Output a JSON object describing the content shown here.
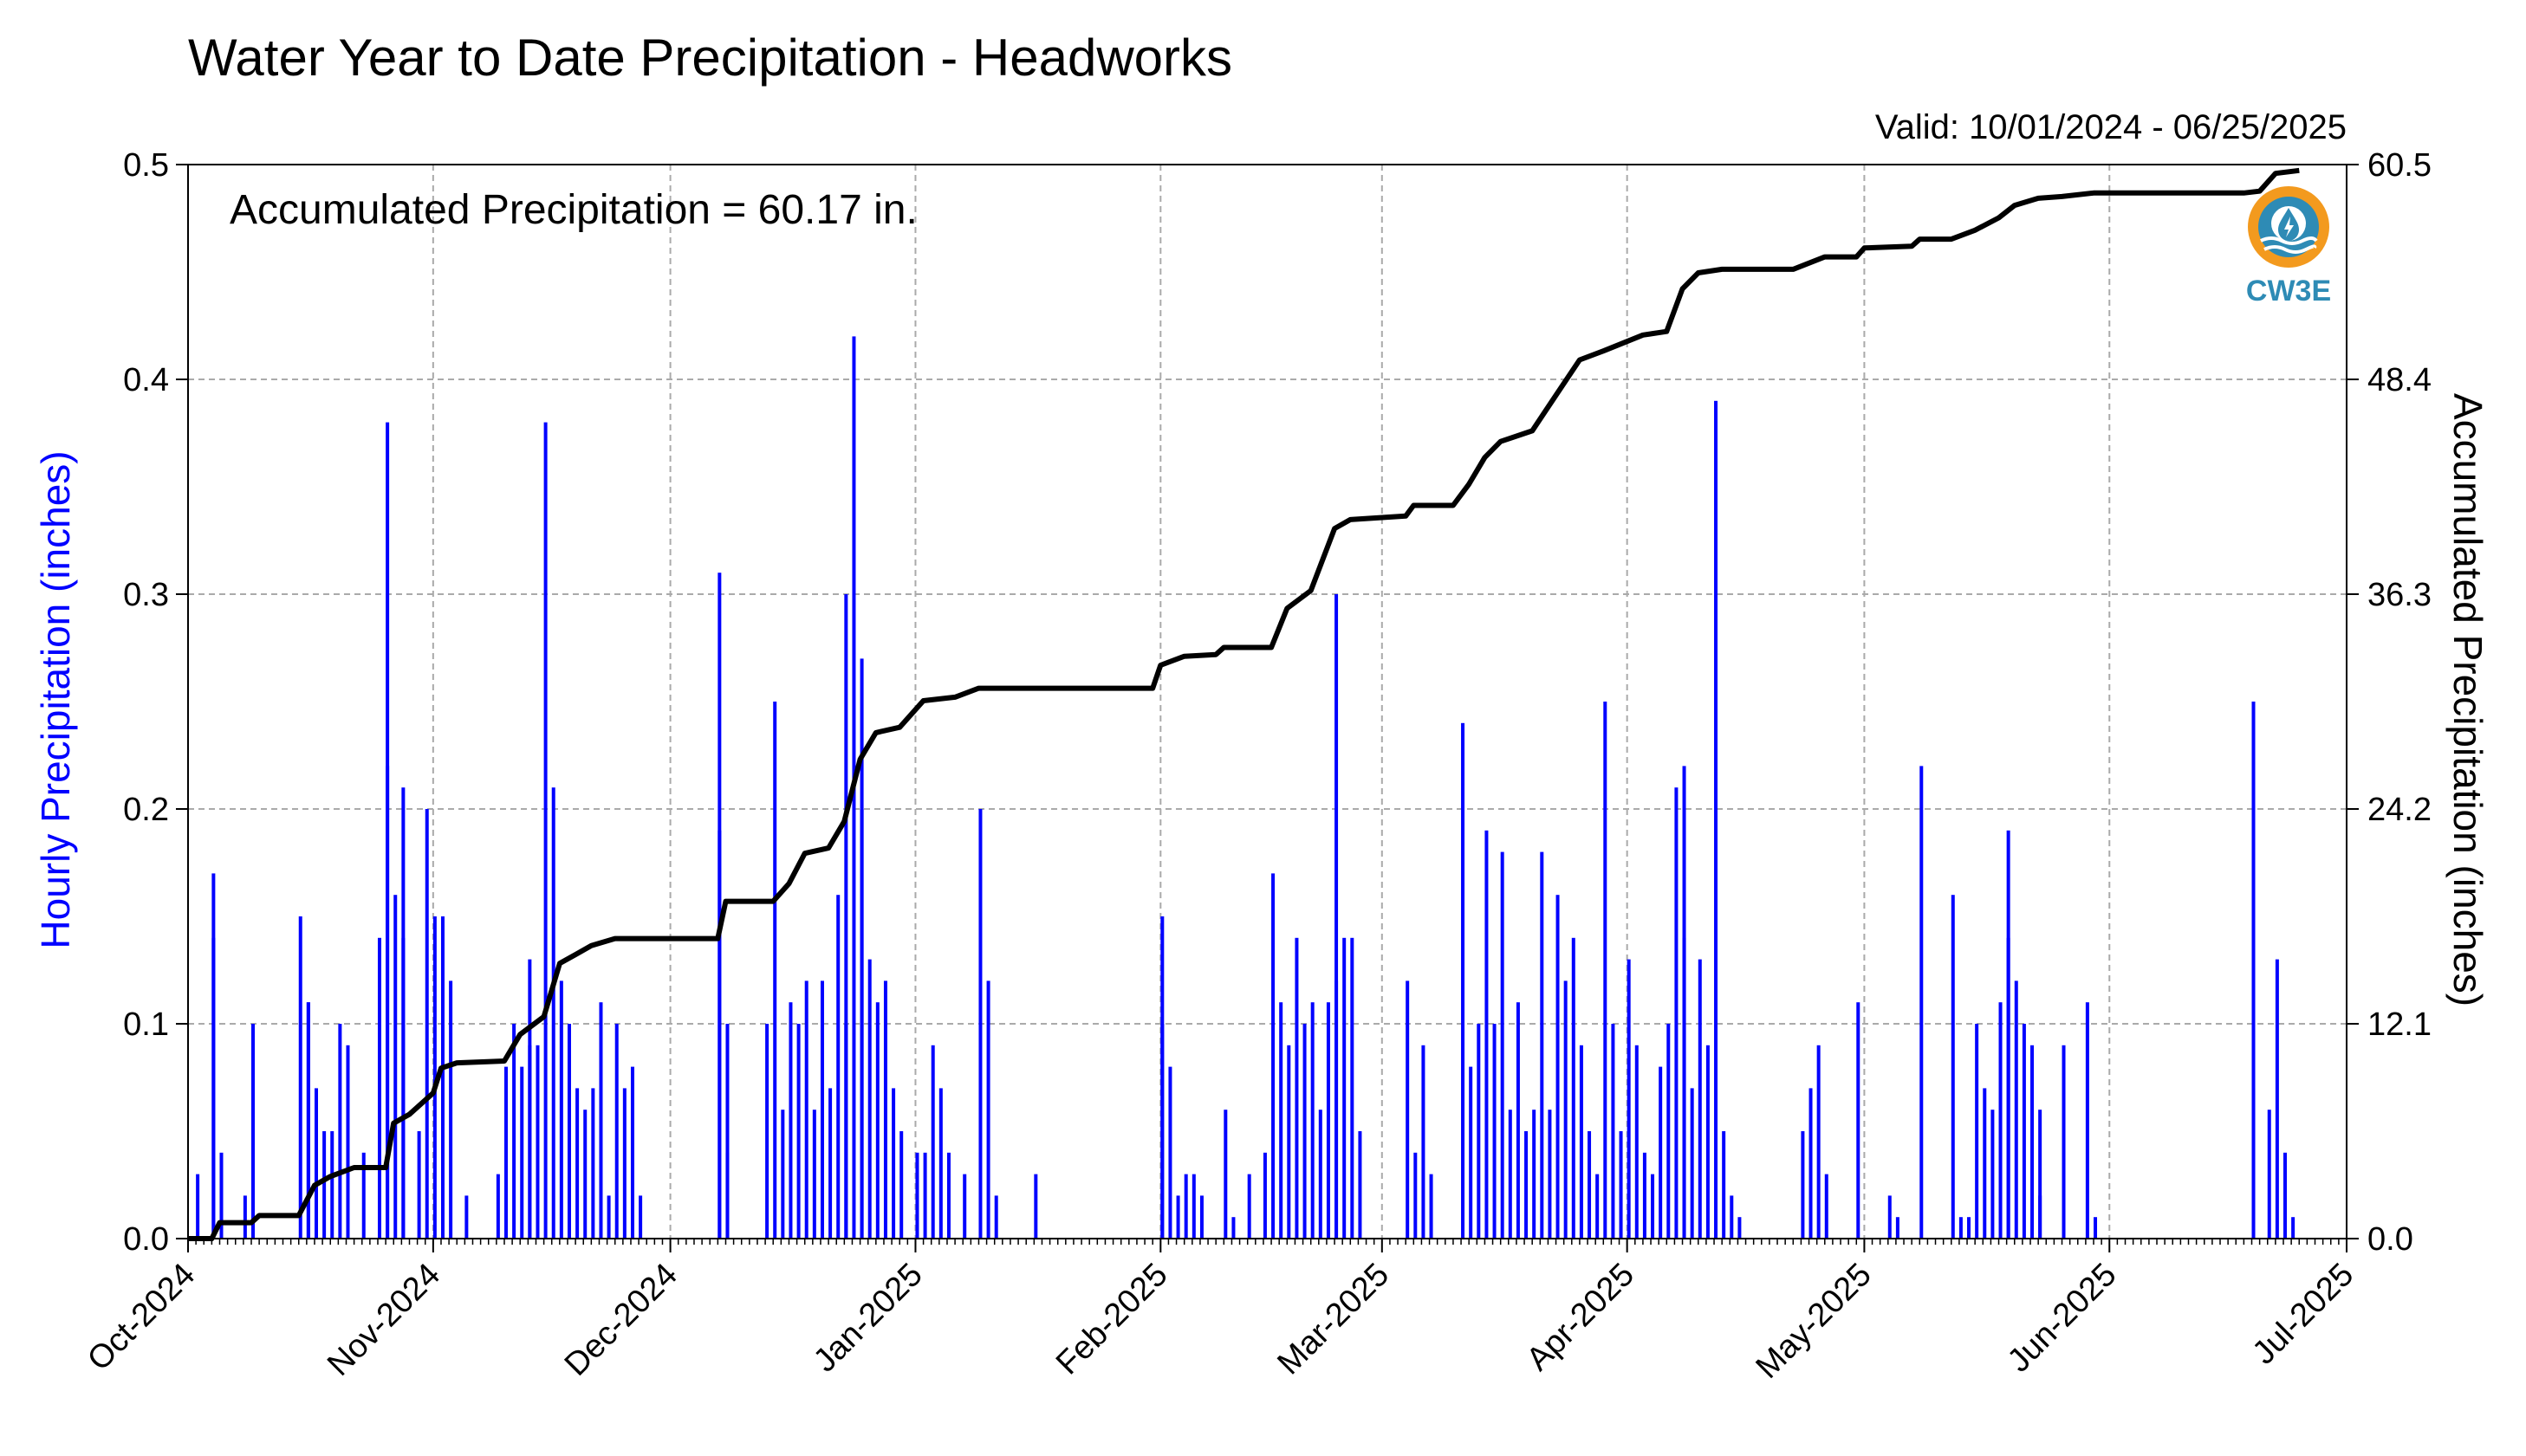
{
  "chart_data": {
    "type": "bar",
    "title": "Water Year to Date Precipitation - Headworks",
    "subtitle": "Valid: 10/01/2024 - 06/25/2025",
    "annotation": "Accumulated Precipitation = 60.17 in.",
    "logo_text": "CW3E",
    "ylabel": "Hourly Precipitation (inches)",
    "y2label": "Accumulated Precipitation (inches)",
    "ylim": [
      0,
      0.5
    ],
    "y2lim": [
      0,
      60.5
    ],
    "y_ticks": [
      "0.0",
      "0.1",
      "0.2",
      "0.3",
      "0.4",
      "0.5"
    ],
    "y2_ticks": [
      "0.0",
      "12.1",
      "24.2",
      "36.3",
      "48.4",
      "60.5"
    ],
    "x_ticks": [
      "Oct-2024",
      "Nov-2024",
      "Dec-2024",
      "Jan-2025",
      "Feb-2025",
      "Mar-2025",
      "Apr-2025",
      "May-2025",
      "Jun-2025",
      "Jul-2025"
    ],
    "x_start": "2024-10-01",
    "x_end": "2025-07-01",
    "grid": true,
    "colors": {
      "hourly": "#0000ff",
      "accumulated": "#000000",
      "grid": "#aaaaaa",
      "ylabel": "#0000ff",
      "logo": "#2e8bb5",
      "logo_ring": "#f39a1e"
    },
    "series": [
      {
        "name": "Hourly Precipitation",
        "axis": "left",
        "style": "bar",
        "points": [
          [
            "2024-10-02",
            0.03
          ],
          [
            "2024-10-04",
            0.14
          ],
          [
            "2024-10-04",
            0.17
          ],
          [
            "2024-10-05",
            0.04
          ],
          [
            "2024-10-08",
            0.02
          ],
          [
            "2024-10-09",
            0.1
          ],
          [
            "2024-10-15",
            0.15
          ],
          [
            "2024-10-16",
            0.11
          ],
          [
            "2024-10-16",
            0.11
          ],
          [
            "2024-10-17",
            0.07
          ],
          [
            "2024-10-18",
            0.05
          ],
          [
            "2024-10-19",
            0.05
          ],
          [
            "2024-10-20",
            0.1
          ],
          [
            "2024-10-21",
            0.09
          ],
          [
            "2024-10-23",
            0.04
          ],
          [
            "2024-10-25",
            0.14
          ],
          [
            "2024-10-26",
            0.38
          ],
          [
            "2024-10-26",
            0.22
          ],
          [
            "2024-10-27",
            0.16
          ],
          [
            "2024-10-28",
            0.14
          ],
          [
            "2024-10-28",
            0.21
          ],
          [
            "2024-10-30",
            0.05
          ],
          [
            "2024-10-31",
            0.2
          ],
          [
            "2024-11-01",
            0.15
          ],
          [
            "2024-11-02",
            0.15
          ],
          [
            "2024-11-03",
            0.12
          ],
          [
            "2024-11-05",
            0.02
          ],
          [
            "2024-11-09",
            0.03
          ],
          [
            "2024-11-10",
            0.08
          ],
          [
            "2024-11-11",
            0.1
          ],
          [
            "2024-11-12",
            0.08
          ],
          [
            "2024-11-13",
            0.09
          ],
          [
            "2024-11-13",
            0.13
          ],
          [
            "2024-11-14",
            0.09
          ],
          [
            "2024-11-15",
            0.38
          ],
          [
            "2024-11-16",
            0.21
          ],
          [
            "2024-11-17",
            0.12
          ],
          [
            "2024-11-18",
            0.1
          ],
          [
            "2024-11-19",
            0.07
          ],
          [
            "2024-11-20",
            0.06
          ],
          [
            "2024-11-21",
            0.07
          ],
          [
            "2024-11-22",
            0.11
          ],
          [
            "2024-11-23",
            0.02
          ],
          [
            "2024-11-24",
            0.1
          ],
          [
            "2024-11-25",
            0.07
          ],
          [
            "2024-11-26",
            0.08
          ],
          [
            "2024-11-27",
            0.02
          ],
          [
            "2024-12-07",
            0.31
          ],
          [
            "2024-12-07",
            0.19
          ],
          [
            "2024-12-08",
            0.1
          ],
          [
            "2024-12-08",
            0.04
          ],
          [
            "2024-12-13",
            0.1
          ],
          [
            "2024-12-14",
            0.25
          ],
          [
            "2024-12-15",
            0.06
          ],
          [
            "2024-12-16",
            0.11
          ],
          [
            "2024-12-17",
            0.1
          ],
          [
            "2024-12-18",
            0.12
          ],
          [
            "2024-12-19",
            0.06
          ],
          [
            "2024-12-20",
            0.12
          ],
          [
            "2024-12-21",
            0.07
          ],
          [
            "2024-12-22",
            0.16
          ],
          [
            "2024-12-23",
            0.3
          ],
          [
            "2024-12-23",
            0.1
          ],
          [
            "2024-12-24",
            0.42
          ],
          [
            "2024-12-25",
            0.27
          ],
          [
            "2024-12-25",
            0.2
          ],
          [
            "2024-12-26",
            0.13
          ],
          [
            "2024-12-27",
            0.11
          ],
          [
            "2024-12-28",
            0.12
          ],
          [
            "2024-12-29",
            0.07
          ],
          [
            "2024-12-30",
            0.05
          ],
          [
            "2025-01-01",
            0.04
          ],
          [
            "2025-01-02",
            0.04
          ],
          [
            "2025-01-03",
            0.09
          ],
          [
            "2025-01-04",
            0.07
          ],
          [
            "2025-01-05",
            0.04
          ],
          [
            "2025-01-07",
            0.03
          ],
          [
            "2025-01-09",
            0.2
          ],
          [
            "2025-01-10",
            0.12
          ],
          [
            "2025-01-11",
            0.02
          ],
          [
            "2025-01-16",
            0.03
          ],
          [
            "2025-02-01",
            0.1
          ],
          [
            "2025-02-01",
            0.15
          ],
          [
            "2025-02-02",
            0.08
          ],
          [
            "2025-02-03",
            0.02
          ],
          [
            "2025-02-04",
            0.03
          ],
          [
            "2025-02-05",
            0.03
          ],
          [
            "2025-02-06",
            0.02
          ],
          [
            "2025-02-09",
            0.06
          ],
          [
            "2025-02-10",
            0.01
          ],
          [
            "2025-02-12",
            0.03
          ],
          [
            "2025-02-14",
            0.04
          ],
          [
            "2025-02-15",
            0.17
          ],
          [
            "2025-02-16",
            0.11
          ],
          [
            "2025-02-17",
            0.09
          ],
          [
            "2025-02-18",
            0.14
          ],
          [
            "2025-02-19",
            0.1
          ],
          [
            "2025-02-20",
            0.11
          ],
          [
            "2025-02-21",
            0.06
          ],
          [
            "2025-02-22",
            0.11
          ],
          [
            "2025-02-23",
            0.12
          ],
          [
            "2025-02-23",
            0.3
          ],
          [
            "2025-02-24",
            0.14
          ],
          [
            "2025-02-25",
            0.14
          ],
          [
            "2025-02-26",
            0.05
          ],
          [
            "2025-03-04",
            0.12
          ],
          [
            "2025-03-05",
            0.04
          ],
          [
            "2025-03-06",
            0.09
          ],
          [
            "2025-03-07",
            0.03
          ],
          [
            "2025-03-11",
            0.24
          ],
          [
            "2025-03-12",
            0.08
          ],
          [
            "2025-03-13",
            0.1
          ],
          [
            "2025-03-14",
            0.19
          ],
          [
            "2025-03-15",
            0.1
          ],
          [
            "2025-03-16",
            0.18
          ],
          [
            "2025-03-17",
            0.06
          ],
          [
            "2025-03-18",
            0.11
          ],
          [
            "2025-03-19",
            0.05
          ],
          [
            "2025-03-20",
            0.06
          ],
          [
            "2025-03-21",
            0.18
          ],
          [
            "2025-03-22",
            0.06
          ],
          [
            "2025-03-23",
            0.16
          ],
          [
            "2025-03-24",
            0.12
          ],
          [
            "2025-03-25",
            0.14
          ],
          [
            "2025-03-26",
            0.09
          ],
          [
            "2025-03-27",
            0.05
          ],
          [
            "2025-03-28",
            0.03
          ],
          [
            "2025-03-29",
            0.25
          ],
          [
            "2025-03-30",
            0.1
          ],
          [
            "2025-03-31",
            0.05
          ],
          [
            "2025-04-01",
            0.13
          ],
          [
            "2025-04-02",
            0.09
          ],
          [
            "2025-04-03",
            0.04
          ],
          [
            "2025-04-04",
            0.03
          ],
          [
            "2025-04-05",
            0.08
          ],
          [
            "2025-04-06",
            0.1
          ],
          [
            "2025-04-07",
            0.21
          ],
          [
            "2025-04-08",
            0.22
          ],
          [
            "2025-04-08",
            0.14
          ],
          [
            "2025-04-09",
            0.07
          ],
          [
            "2025-04-10",
            0.13
          ],
          [
            "2025-04-11",
            0.09
          ],
          [
            "2025-04-12",
            0.39
          ],
          [
            "2025-04-13",
            0.05
          ],
          [
            "2025-04-14",
            0.02
          ],
          [
            "2025-04-15",
            0.01
          ],
          [
            "2025-04-23",
            0.05
          ],
          [
            "2025-04-24",
            0.07
          ],
          [
            "2025-04-25",
            0.09
          ],
          [
            "2025-04-26",
            0.03
          ],
          [
            "2025-04-30",
            0.11
          ],
          [
            "2025-05-04",
            0.02
          ],
          [
            "2025-05-05",
            0.01
          ],
          [
            "2025-05-08",
            0.22
          ],
          [
            "2025-05-12",
            0.16
          ],
          [
            "2025-05-13",
            0.01
          ],
          [
            "2025-05-14",
            0.01
          ],
          [
            "2025-05-15",
            0.1
          ],
          [
            "2025-05-16",
            0.07
          ],
          [
            "2025-05-17",
            0.06
          ],
          [
            "2025-05-18",
            0.11
          ],
          [
            "2025-05-19",
            0.19
          ],
          [
            "2025-05-19",
            0.14
          ],
          [
            "2025-05-20",
            0.12
          ],
          [
            "2025-05-21",
            0.1
          ],
          [
            "2025-05-22",
            0.09
          ],
          [
            "2025-05-23",
            0.06
          ],
          [
            "2025-05-23",
            0.02
          ],
          [
            "2025-05-26",
            0.09
          ],
          [
            "2025-05-29",
            0.11
          ],
          [
            "2025-05-30",
            0.01
          ],
          [
            "2025-06-19",
            0.25
          ],
          [
            "2025-06-19",
            0.07
          ],
          [
            "2025-06-21",
            0.06
          ],
          [
            "2025-06-22",
            0.13
          ],
          [
            "2025-06-23",
            0.04
          ],
          [
            "2025-06-24",
            0.01
          ]
        ]
      },
      {
        "name": "Accumulated Precipitation",
        "axis": "right",
        "style": "line",
        "points": [
          [
            "2024-10-01",
            0.0
          ],
          [
            "2024-10-04",
            0.0
          ],
          [
            "2024-10-05",
            0.9
          ],
          [
            "2024-10-09",
            0.9
          ],
          [
            "2024-10-10",
            1.3
          ],
          [
            "2024-10-15",
            1.3
          ],
          [
            "2024-10-17",
            3.0
          ],
          [
            "2024-10-19",
            3.5
          ],
          [
            "2024-10-22",
            4.0
          ],
          [
            "2024-10-26",
            4.0
          ],
          [
            "2024-10-27",
            6.5
          ],
          [
            "2024-10-29",
            7.0
          ],
          [
            "2024-11-01",
            8.2
          ],
          [
            "2024-11-02",
            9.6
          ],
          [
            "2024-11-04",
            9.9
          ],
          [
            "2024-11-10",
            10.0
          ],
          [
            "2024-11-12",
            11.5
          ],
          [
            "2024-11-15",
            12.5
          ],
          [
            "2024-11-17",
            15.5
          ],
          [
            "2024-11-19",
            16.0
          ],
          [
            "2024-11-21",
            16.5
          ],
          [
            "2024-11-24",
            16.9
          ],
          [
            "2024-12-07",
            16.9
          ],
          [
            "2024-12-08",
            19.0
          ],
          [
            "2024-12-14",
            19.0
          ],
          [
            "2024-12-16",
            20.0
          ],
          [
            "2024-12-18",
            21.7
          ],
          [
            "2024-12-21",
            22.0
          ],
          [
            "2024-12-23",
            23.5
          ],
          [
            "2024-12-25",
            27.0
          ],
          [
            "2024-12-27",
            28.5
          ],
          [
            "2024-12-30",
            28.8
          ],
          [
            "2025-01-02",
            30.3
          ],
          [
            "2025-01-06",
            30.5
          ],
          [
            "2025-01-09",
            31.0
          ],
          [
            "2025-01-31",
            31.0
          ],
          [
            "2025-02-01",
            32.3
          ],
          [
            "2025-02-04",
            32.8
          ],
          [
            "2025-02-08",
            32.9
          ],
          [
            "2025-02-09",
            33.3
          ],
          [
            "2025-02-15",
            33.3
          ],
          [
            "2025-02-17",
            35.5
          ],
          [
            "2025-02-20",
            36.5
          ],
          [
            "2025-02-23",
            40.0
          ],
          [
            "2025-02-25",
            40.5
          ],
          [
            "2025-03-04",
            40.7
          ],
          [
            "2025-03-05",
            41.3
          ],
          [
            "2025-03-10",
            41.3
          ],
          [
            "2025-03-12",
            42.5
          ],
          [
            "2025-03-14",
            44.0
          ],
          [
            "2025-03-16",
            44.9
          ],
          [
            "2025-03-20",
            45.5
          ],
          [
            "2025-03-23",
            47.5
          ],
          [
            "2025-03-26",
            49.5
          ],
          [
            "2025-03-29",
            50.0
          ],
          [
            "2025-04-03",
            50.9
          ],
          [
            "2025-04-06",
            51.1
          ],
          [
            "2025-04-08",
            53.5
          ],
          [
            "2025-04-10",
            54.4
          ],
          [
            "2025-04-13",
            54.6
          ],
          [
            "2025-04-22",
            54.6
          ],
          [
            "2025-04-26",
            55.3
          ],
          [
            "2025-04-30",
            55.3
          ],
          [
            "2025-05-01",
            55.8
          ],
          [
            "2025-05-07",
            55.9
          ],
          [
            "2025-05-08",
            56.3
          ],
          [
            "2025-05-12",
            56.3
          ],
          [
            "2025-05-15",
            56.8
          ],
          [
            "2025-05-18",
            57.5
          ],
          [
            "2025-05-20",
            58.2
          ],
          [
            "2025-05-23",
            58.6
          ],
          [
            "2025-05-26",
            58.7
          ],
          [
            "2025-05-30",
            58.9
          ],
          [
            "2025-06-18",
            58.9
          ],
          [
            "2025-06-20",
            59.0
          ],
          [
            "2025-06-22",
            60.0
          ],
          [
            "2025-06-25",
            60.17
          ]
        ]
      }
    ]
  }
}
